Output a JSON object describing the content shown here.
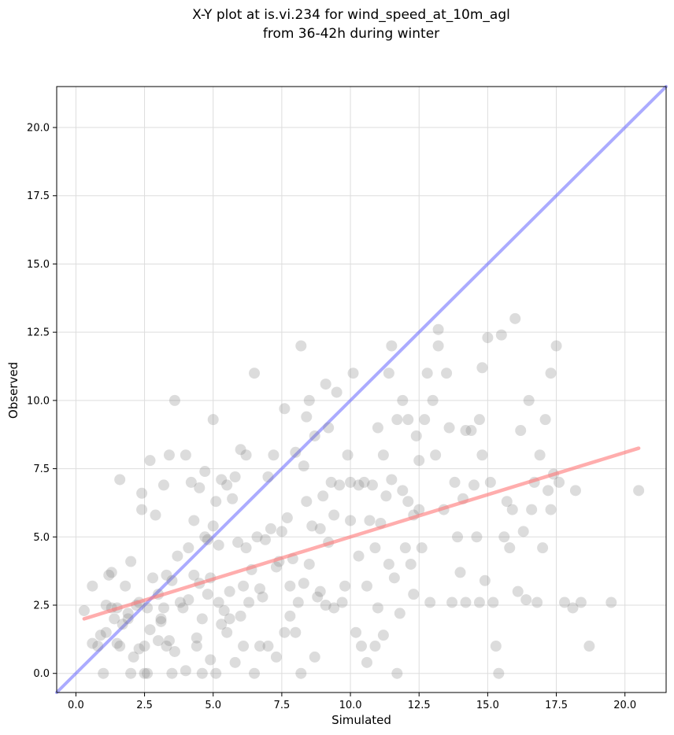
{
  "chart_data": {
    "type": "scatter",
    "title_line1": "X-Y plot at is.vi.234 for wind_speed_at_10m_agl",
    "title_line2": "from 36-42h during winter",
    "xlabel": "Simulated",
    "ylabel": "Observed",
    "xlim": [
      -0.7,
      21.5
    ],
    "ylim": [
      -0.7,
      21.5
    ],
    "x_ticks": [
      0.0,
      2.5,
      5.0,
      7.5,
      10.0,
      12.5,
      15.0,
      17.5,
      20.0
    ],
    "x_tick_labels": [
      "0.0",
      "2.5",
      "5.0",
      "7.5",
      "10.0",
      "12.5",
      "15.0",
      "17.5",
      "20.0"
    ],
    "y_ticks": [
      0.0,
      2.5,
      5.0,
      7.5,
      10.0,
      12.5,
      15.0,
      17.5,
      20.0
    ],
    "y_tick_labels": [
      "0.0",
      "2.5",
      "5.0",
      "7.5",
      "10.0",
      "12.5",
      "15.0",
      "17.5",
      "20.0"
    ],
    "grid": true,
    "colors": {
      "points": "#808080",
      "identity_line": "#6666ff",
      "fit_line": "#ff7777",
      "grid": "#dddddd"
    },
    "identity_line": {
      "x": [
        -0.7,
        21.5
      ],
      "y": [
        -0.7,
        21.5
      ]
    },
    "fit_line": {
      "x": [
        0.3,
        20.5
      ],
      "y": [
        2.0,
        8.25
      ]
    },
    "points": [
      [
        0.3,
        2.3
      ],
      [
        0.6,
        3.2
      ],
      [
        0.6,
        1.1
      ],
      [
        0.8,
        1.0
      ],
      [
        0.9,
        1.4
      ],
      [
        1.0,
        0.0
      ],
      [
        1.1,
        2.5
      ],
      [
        1.1,
        1.5
      ],
      [
        1.2,
        3.6
      ],
      [
        1.3,
        3.7
      ],
      [
        1.3,
        2.4
      ],
      [
        1.4,
        2.0
      ],
      [
        1.5,
        2.4
      ],
      [
        1.5,
        1.1
      ],
      [
        1.6,
        1.0
      ],
      [
        1.6,
        7.1
      ],
      [
        1.7,
        1.8
      ],
      [
        1.8,
        3.2
      ],
      [
        1.9,
        2.2
      ],
      [
        1.9,
        2.0
      ],
      [
        2.0,
        4.1
      ],
      [
        2.0,
        0.0
      ],
      [
        2.1,
        0.6
      ],
      [
        2.2,
        2.5
      ],
      [
        2.3,
        0.9
      ],
      [
        2.3,
        2.6
      ],
      [
        2.4,
        6.6
      ],
      [
        2.4,
        6.0
      ],
      [
        2.5,
        0.0
      ],
      [
        2.5,
        1.0
      ],
      [
        2.6,
        2.4
      ],
      [
        2.6,
        0.0
      ],
      [
        2.7,
        1.6
      ],
      [
        2.7,
        7.8
      ],
      [
        2.8,
        3.5
      ],
      [
        2.9,
        5.8
      ],
      [
        3.0,
        1.2
      ],
      [
        3.0,
        2.9
      ],
      [
        3.1,
        2.0
      ],
      [
        3.1,
        1.9
      ],
      [
        3.2,
        2.4
      ],
      [
        3.2,
        6.9
      ],
      [
        3.3,
        3.6
      ],
      [
        3.3,
        1.0
      ],
      [
        3.4,
        8.0
      ],
      [
        3.4,
        1.2
      ],
      [
        3.5,
        0.0
      ],
      [
        3.5,
        3.4
      ],
      [
        3.6,
        10.0
      ],
      [
        3.6,
        0.8
      ],
      [
        3.7,
        4.3
      ],
      [
        3.8,
        2.6
      ],
      [
        3.9,
        2.4
      ],
      [
        4.0,
        0.1
      ],
      [
        4.0,
        8.0
      ],
      [
        4.1,
        4.6
      ],
      [
        4.1,
        2.7
      ],
      [
        4.2,
        7.0
      ],
      [
        4.3,
        3.6
      ],
      [
        4.3,
        5.6
      ],
      [
        4.4,
        1.0
      ],
      [
        4.4,
        1.3
      ],
      [
        4.5,
        3.3
      ],
      [
        4.5,
        6.8
      ],
      [
        4.6,
        2.0
      ],
      [
        4.6,
        0.0
      ],
      [
        4.7,
        5.0
      ],
      [
        4.7,
        7.4
      ],
      [
        4.8,
        2.9
      ],
      [
        4.8,
        4.9
      ],
      [
        4.9,
        3.5
      ],
      [
        4.9,
        0.5
      ],
      [
        5.0,
        9.3
      ],
      [
        5.0,
        5.4
      ],
      [
        5.1,
        0.0
      ],
      [
        5.1,
        6.3
      ],
      [
        5.2,
        2.6
      ],
      [
        5.2,
        4.7
      ],
      [
        5.3,
        1.8
      ],
      [
        5.3,
        7.1
      ],
      [
        5.4,
        2.3
      ],
      [
        5.5,
        1.5
      ],
      [
        5.5,
        6.9
      ],
      [
        5.6,
        2.0
      ],
      [
        5.6,
        3.0
      ],
      [
        5.7,
        6.4
      ],
      [
        5.8,
        7.2
      ],
      [
        5.8,
        0.4
      ],
      [
        5.9,
        4.8
      ],
      [
        6.0,
        8.2
      ],
      [
        6.0,
        2.1
      ],
      [
        6.1,
        3.2
      ],
      [
        6.1,
        1.0
      ],
      [
        6.2,
        8.0
      ],
      [
        6.2,
        4.6
      ],
      [
        6.3,
        2.6
      ],
      [
        6.4,
        3.8
      ],
      [
        6.5,
        11.0
      ],
      [
        6.5,
        0.0
      ],
      [
        6.6,
        5.0
      ],
      [
        6.7,
        1.0
      ],
      [
        6.7,
        3.1
      ],
      [
        6.8,
        2.8
      ],
      [
        6.9,
        4.9
      ],
      [
        7.0,
        7.2
      ],
      [
        7.0,
        1.0
      ],
      [
        7.1,
        5.3
      ],
      [
        7.2,
        8.0
      ],
      [
        7.3,
        0.6
      ],
      [
        7.3,
        3.9
      ],
      [
        7.4,
        4.1
      ],
      [
        7.5,
        5.2
      ],
      [
        7.6,
        9.7
      ],
      [
        7.6,
        1.5
      ],
      [
        7.7,
        5.7
      ],
      [
        7.8,
        3.2
      ],
      [
        7.8,
        2.1
      ],
      [
        7.9,
        4.2
      ],
      [
        8.0,
        8.1
      ],
      [
        8.0,
        1.5
      ],
      [
        8.1,
        2.6
      ],
      [
        8.2,
        12.0
      ],
      [
        8.2,
        0.0
      ],
      [
        8.3,
        3.3
      ],
      [
        8.3,
        7.6
      ],
      [
        8.4,
        6.3
      ],
      [
        8.4,
        9.4
      ],
      [
        8.5,
        10.0
      ],
      [
        8.5,
        4.0
      ],
      [
        8.6,
        5.4
      ],
      [
        8.7,
        8.7
      ],
      [
        8.7,
        0.6
      ],
      [
        8.8,
        2.8
      ],
      [
        8.9,
        3.0
      ],
      [
        8.9,
        5.3
      ],
      [
        9.0,
        6.5
      ],
      [
        9.1,
        10.6
      ],
      [
        9.1,
        2.5
      ],
      [
        9.2,
        9.0
      ],
      [
        9.2,
        4.8
      ],
      [
        9.3,
        7.0
      ],
      [
        9.4,
        2.4
      ],
      [
        9.4,
        5.8
      ],
      [
        9.5,
        10.3
      ],
      [
        9.6,
        6.9
      ],
      [
        9.7,
        2.6
      ],
      [
        9.8,
        3.2
      ],
      [
        9.9,
        8.0
      ],
      [
        10.0,
        5.6
      ],
      [
        10.0,
        7.0
      ],
      [
        10.1,
        11.0
      ],
      [
        10.2,
        1.5
      ],
      [
        10.3,
        4.3
      ],
      [
        10.3,
        6.9
      ],
      [
        10.4,
        1.0
      ],
      [
        10.5,
        7.0
      ],
      [
        10.6,
        0.4
      ],
      [
        10.6,
        3.2
      ],
      [
        10.7,
        5.6
      ],
      [
        10.8,
        6.9
      ],
      [
        10.9,
        4.6
      ],
      [
        10.9,
        1.0
      ],
      [
        11.0,
        9.0
      ],
      [
        11.0,
        2.4
      ],
      [
        11.1,
        5.5
      ],
      [
        11.2,
        8.0
      ],
      [
        11.2,
        1.4
      ],
      [
        11.3,
        6.5
      ],
      [
        11.4,
        4.0
      ],
      [
        11.4,
        11.0
      ],
      [
        11.5,
        7.1
      ],
      [
        11.5,
        12.0
      ],
      [
        11.6,
        3.5
      ],
      [
        11.7,
        9.3
      ],
      [
        11.7,
        0.0
      ],
      [
        11.8,
        2.2
      ],
      [
        11.9,
        6.7
      ],
      [
        11.9,
        10.0
      ],
      [
        12.0,
        4.6
      ],
      [
        12.1,
        6.3
      ],
      [
        12.1,
        9.3
      ],
      [
        12.2,
        4.0
      ],
      [
        12.3,
        5.8
      ],
      [
        12.3,
        2.9
      ],
      [
        12.4,
        8.7
      ],
      [
        12.5,
        7.8
      ],
      [
        12.5,
        6.0
      ],
      [
        12.6,
        4.6
      ],
      [
        12.7,
        9.3
      ],
      [
        12.8,
        11.0
      ],
      [
        12.9,
        2.6
      ],
      [
        13.0,
        10.0
      ],
      [
        13.1,
        8.0
      ],
      [
        13.2,
        12.0
      ],
      [
        13.2,
        12.6
      ],
      [
        13.4,
        6.0
      ],
      [
        13.5,
        11.0
      ],
      [
        13.6,
        9.0
      ],
      [
        13.7,
        2.6
      ],
      [
        13.8,
        7.0
      ],
      [
        13.9,
        5.0
      ],
      [
        14.0,
        3.7
      ],
      [
        14.1,
        6.4
      ],
      [
        14.2,
        2.6
      ],
      [
        14.2,
        8.9
      ],
      [
        14.4,
        8.9
      ],
      [
        14.5,
        6.9
      ],
      [
        14.6,
        5.0
      ],
      [
        14.7,
        2.6
      ],
      [
        14.7,
        9.3
      ],
      [
        14.8,
        8.0
      ],
      [
        14.8,
        11.2
      ],
      [
        14.9,
        3.4
      ],
      [
        15.0,
        12.3
      ],
      [
        15.1,
        7.0
      ],
      [
        15.2,
        2.6
      ],
      [
        15.3,
        1.0
      ],
      [
        15.4,
        0.0
      ],
      [
        15.5,
        12.4
      ],
      [
        15.6,
        5.0
      ],
      [
        15.7,
        6.3
      ],
      [
        15.8,
        4.6
      ],
      [
        15.9,
        6.0
      ],
      [
        16.0,
        13.0
      ],
      [
        16.1,
        3.0
      ],
      [
        16.2,
        8.9
      ],
      [
        16.3,
        5.2
      ],
      [
        16.4,
        2.7
      ],
      [
        16.5,
        10.0
      ],
      [
        16.6,
        6.0
      ],
      [
        16.7,
        7.0
      ],
      [
        16.8,
        2.6
      ],
      [
        16.9,
        8.0
      ],
      [
        17.0,
        4.6
      ],
      [
        17.1,
        9.3
      ],
      [
        17.2,
        6.7
      ],
      [
        17.3,
        11.0
      ],
      [
        17.3,
        6.0
      ],
      [
        17.4,
        7.3
      ],
      [
        17.5,
        12.0
      ],
      [
        17.6,
        7.0
      ],
      [
        17.8,
        2.6
      ],
      [
        18.1,
        2.4
      ],
      [
        18.2,
        6.7
      ],
      [
        18.4,
        2.6
      ],
      [
        18.7,
        1.0
      ],
      [
        19.5,
        2.6
      ],
      [
        20.5,
        6.7
      ]
    ]
  }
}
